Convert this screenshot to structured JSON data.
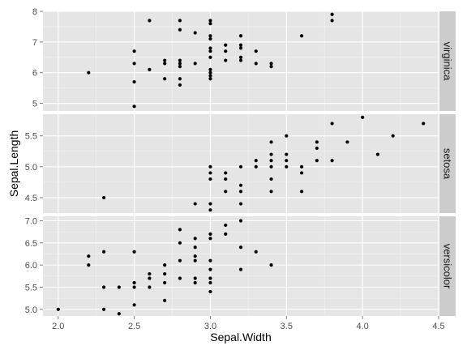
{
  "chart_data": {
    "type": "scatter",
    "layout": "faceted rows with right-side strip labels",
    "xlabel": "Sepal.Width",
    "ylabel": "Sepal.Length",
    "xlim": [
      1.9,
      4.5
    ],
    "x_ticks": [
      2.0,
      2.5,
      3.0,
      3.5,
      4.0,
      4.5
    ],
    "x_tick_labels": [
      "2.0",
      "2.5",
      "3.0",
      "3.5",
      "4.0",
      "4.5"
    ],
    "grid": true,
    "colors": {
      "panel_background": "#e5e5e5",
      "grid_major": "#ffffff",
      "grid_minor": "#f2f2f2",
      "strip_background": "#cccccc",
      "point": "#000000"
    },
    "facets": [
      {
        "label": "virginica",
        "ylim": [
          4.75,
          8.0
        ],
        "y_ticks": [
          5,
          6,
          7,
          8
        ],
        "y_tick_labels": [
          "5",
          "6",
          "7",
          "8"
        ],
        "points": [
          [
            2.2,
            6.0
          ],
          [
            2.5,
            6.7
          ],
          [
            2.5,
            6.3
          ],
          [
            2.5,
            5.7
          ],
          [
            2.5,
            4.9
          ],
          [
            2.6,
            6.1
          ],
          [
            2.6,
            7.7
          ],
          [
            2.7,
            6.4
          ],
          [
            2.7,
            6.3
          ],
          [
            2.7,
            5.8
          ],
          [
            2.8,
            7.7
          ],
          [
            2.8,
            7.4
          ],
          [
            2.8,
            6.4
          ],
          [
            2.8,
            6.3
          ],
          [
            2.8,
            6.2
          ],
          [
            2.8,
            5.8
          ],
          [
            2.8,
            5.6
          ],
          [
            2.9,
            7.3
          ],
          [
            2.9,
            6.3
          ],
          [
            3.0,
            7.7
          ],
          [
            3.0,
            7.6
          ],
          [
            3.0,
            7.2
          ],
          [
            3.0,
            7.1
          ],
          [
            3.0,
            6.8
          ],
          [
            3.0,
            6.7
          ],
          [
            3.0,
            6.5
          ],
          [
            3.0,
            6.1
          ],
          [
            3.0,
            6.0
          ],
          [
            3.0,
            5.9
          ],
          [
            3.0,
            5.8
          ],
          [
            3.1,
            6.9
          ],
          [
            3.1,
            6.7
          ],
          [
            3.1,
            6.4
          ],
          [
            3.2,
            7.2
          ],
          [
            3.2,
            6.9
          ],
          [
            3.2,
            6.8
          ],
          [
            3.2,
            6.5
          ],
          [
            3.2,
            6.4
          ],
          [
            3.3,
            6.7
          ],
          [
            3.3,
            6.3
          ],
          [
            3.4,
            6.3
          ],
          [
            3.4,
            6.2
          ],
          [
            3.6,
            7.2
          ],
          [
            3.8,
            7.9
          ],
          [
            3.8,
            7.7
          ]
        ]
      },
      {
        "label": "setosa",
        "ylim": [
          4.25,
          5.85
        ],
        "y_ticks": [
          4.5,
          5.0,
          5.5
        ],
        "y_tick_labels": [
          "4.5",
          "5.0",
          "5.5"
        ],
        "points": [
          [
            2.3,
            4.5
          ],
          [
            2.9,
            4.4
          ],
          [
            3.0,
            5.0
          ],
          [
            3.0,
            4.9
          ],
          [
            3.0,
            4.8
          ],
          [
            3.0,
            4.4
          ],
          [
            3.0,
            4.3
          ],
          [
            3.1,
            4.9
          ],
          [
            3.1,
            4.8
          ],
          [
            3.1,
            4.6
          ],
          [
            3.2,
            5.0
          ],
          [
            3.2,
            4.7
          ],
          [
            3.2,
            4.6
          ],
          [
            3.2,
            4.4
          ],
          [
            3.3,
            5.1
          ],
          [
            3.3,
            5.0
          ],
          [
            3.4,
            5.4
          ],
          [
            3.4,
            5.2
          ],
          [
            3.4,
            5.1
          ],
          [
            3.4,
            5.0
          ],
          [
            3.4,
            4.8
          ],
          [
            3.4,
            4.6
          ],
          [
            3.5,
            5.5
          ],
          [
            3.5,
            5.2
          ],
          [
            3.5,
            5.1
          ],
          [
            3.5,
            5.0
          ],
          [
            3.6,
            5.0
          ],
          [
            3.6,
            4.9
          ],
          [
            3.6,
            4.6
          ],
          [
            3.7,
            5.4
          ],
          [
            3.7,
            5.3
          ],
          [
            3.7,
            5.1
          ],
          [
            3.8,
            5.7
          ],
          [
            3.8,
            5.1
          ],
          [
            3.9,
            5.4
          ],
          [
            4.0,
            5.8
          ],
          [
            4.1,
            5.2
          ],
          [
            4.2,
            5.5
          ],
          [
            4.4,
            5.7
          ]
        ]
      },
      {
        "label": "versicolor",
        "ylim": [
          4.85,
          7.1
        ],
        "y_ticks": [
          5.0,
          5.5,
          6.0,
          6.5,
          7.0
        ],
        "y_tick_labels": [
          "5.0",
          "5.5",
          "6.0",
          "6.5",
          "7.0"
        ],
        "points": [
          [
            2.0,
            5.0
          ],
          [
            2.2,
            6.2
          ],
          [
            2.2,
            6.0
          ],
          [
            2.3,
            6.3
          ],
          [
            2.3,
            5.5
          ],
          [
            2.3,
            5.0
          ],
          [
            2.4,
            5.5
          ],
          [
            2.4,
            4.9
          ],
          [
            2.5,
            6.3
          ],
          [
            2.5,
            5.6
          ],
          [
            2.5,
            5.5
          ],
          [
            2.5,
            5.1
          ],
          [
            2.6,
            5.8
          ],
          [
            2.6,
            5.7
          ],
          [
            2.6,
            5.5
          ],
          [
            2.7,
            6.0
          ],
          [
            2.7,
            5.8
          ],
          [
            2.7,
            5.6
          ],
          [
            2.7,
            5.2
          ],
          [
            2.8,
            6.8
          ],
          [
            2.8,
            6.5
          ],
          [
            2.8,
            6.1
          ],
          [
            2.8,
            5.7
          ],
          [
            2.9,
            6.6
          ],
          [
            2.9,
            6.4
          ],
          [
            2.9,
            6.2
          ],
          [
            2.9,
            6.1
          ],
          [
            2.9,
            5.7
          ],
          [
            2.9,
            5.6
          ],
          [
            3.0,
            6.7
          ],
          [
            3.0,
            6.6
          ],
          [
            3.0,
            6.1
          ],
          [
            3.0,
            5.9
          ],
          [
            3.0,
            5.7
          ],
          [
            3.0,
            5.6
          ],
          [
            3.0,
            5.4
          ],
          [
            3.1,
            6.9
          ],
          [
            3.1,
            6.7
          ],
          [
            3.2,
            7.0
          ],
          [
            3.2,
            6.4
          ],
          [
            3.2,
            5.9
          ],
          [
            3.3,
            6.3
          ],
          [
            3.4,
            6.0
          ]
        ]
      }
    ]
  }
}
